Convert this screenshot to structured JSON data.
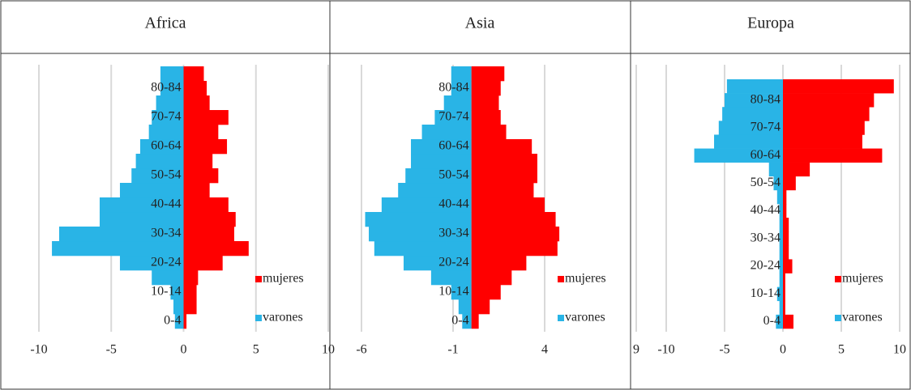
{
  "chart_data": [
    {
      "type": "bar",
      "orientation": "horizontal",
      "title": "Africa",
      "categories": [
        "0-4",
        null,
        "10-14",
        null,
        "20-24",
        null,
        "30-34",
        null,
        "40-44",
        null,
        "50-54",
        null,
        "60-64",
        null,
        "70-74",
        null,
        "80-84",
        null
      ],
      "series": [
        {
          "name": "mujeres",
          "color": "#ff0000",
          "values": [
            0.2,
            0.9,
            0.9,
            1.0,
            2.7,
            4.5,
            3.5,
            3.6,
            3.1,
            1.8,
            2.4,
            2.0,
            3.0,
            2.4,
            3.1,
            1.8,
            1.6,
            1.4
          ]
        },
        {
          "name": "varones",
          "color": "#29b4e6",
          "values": [
            -0.6,
            -0.7,
            -0.9,
            -2.2,
            -4.4,
            -9.1,
            -8.6,
            -5.8,
            -5.8,
            -4.4,
            -3.6,
            -3.3,
            -3.0,
            -2.4,
            -2.2,
            -1.9,
            -1.6,
            -1.6
          ]
        }
      ],
      "xlim": [
        -10,
        10
      ],
      "xticks": [
        -10,
        -5,
        0,
        5,
        10
      ],
      "grid": true,
      "legend": "lower right"
    },
    {
      "type": "bar",
      "orientation": "horizontal",
      "title": "Asia",
      "categories": [
        "0-4",
        null,
        "10-14",
        null,
        "20-24",
        null,
        "30-34",
        null,
        "40-44",
        null,
        "50-54",
        null,
        "60-64",
        null,
        "70-74",
        null,
        "80-84",
        null
      ],
      "series": [
        {
          "name": "mujeres",
          "color": "#ff0000",
          "values": [
            0.4,
            1.0,
            1.6,
            2.2,
            3.0,
            4.7,
            4.8,
            4.6,
            4.0,
            3.4,
            3.6,
            3.6,
            3.3,
            1.9,
            1.6,
            1.5,
            1.6,
            1.8
          ]
        },
        {
          "name": "varones",
          "color": "#29b4e6",
          "values": [
            -0.5,
            -0.7,
            -1.1,
            -2.2,
            -3.7,
            -5.3,
            -5.6,
            -5.8,
            -4.9,
            -4.0,
            -3.6,
            -3.3,
            -3.3,
            -2.7,
            -2.0,
            -1.5,
            -1.1,
            -1.1
          ]
        }
      ],
      "xlim": [
        -6,
        9
      ],
      "xticks": [
        -6,
        -1,
        4,
        9
      ],
      "grid": true,
      "legend": "lower right"
    },
    {
      "type": "bar",
      "orientation": "horizontal",
      "title": "Europa",
      "categories": [
        "0-4",
        null,
        "10-14",
        null,
        "20-24",
        null,
        "30-34",
        null,
        "40-44",
        null,
        "50-54",
        null,
        "60-64",
        null,
        "70-74",
        null,
        "80-84",
        null
      ],
      "series": [
        {
          "name": "mujeres",
          "color": "#ff0000",
          "values": [
            0.9,
            0.2,
            0.2,
            0.2,
            0.8,
            0.5,
            0.5,
            0.5,
            0.3,
            0.3,
            1.1,
            2.3,
            8.5,
            6.8,
            7.0,
            7.4,
            7.8,
            9.5
          ]
        },
        {
          "name": "varones",
          "color": "#29b4e6",
          "values": [
            -0.6,
            -0.3,
            -0.5,
            -0.3,
            -0.3,
            -0.3,
            -0.3,
            -0.3,
            -0.3,
            -0.5,
            -0.8,
            -1.2,
            -7.6,
            -5.9,
            -5.5,
            -5.2,
            -5.0,
            -4.8
          ]
        }
      ],
      "xlim": [
        -10,
        10
      ],
      "xticks": [
        -10,
        -5,
        0,
        5,
        10
      ],
      "grid": true,
      "legend": "lower right"
    }
  ]
}
